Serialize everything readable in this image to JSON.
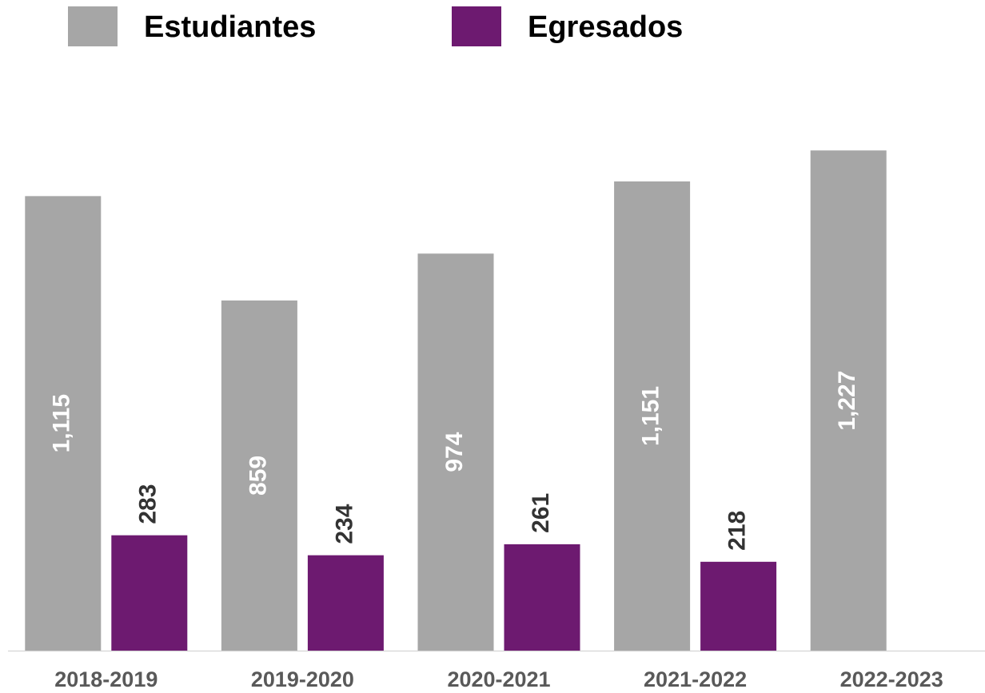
{
  "chart_data": {
    "type": "bar",
    "categories": [
      "2018-2019",
      "2019-2020",
      "2020-2021",
      "2021-2022",
      "2022-2023"
    ],
    "series": [
      {
        "name": "Estudiantes",
        "color": "#a6a6a6",
        "values": [
          1115,
          859,
          974,
          1151,
          1227
        ],
        "value_labels": [
          "1,115",
          "859",
          "974",
          "1,151",
          "1,227"
        ]
      },
      {
        "name": "Egresados",
        "color": "#6d1a70",
        "values": [
          283,
          234,
          261,
          218,
          null
        ],
        "value_labels": [
          "283",
          "234",
          "261",
          "218",
          null
        ]
      }
    ],
    "ylim": [
      0,
      1400
    ],
    "legend": "top"
  }
}
